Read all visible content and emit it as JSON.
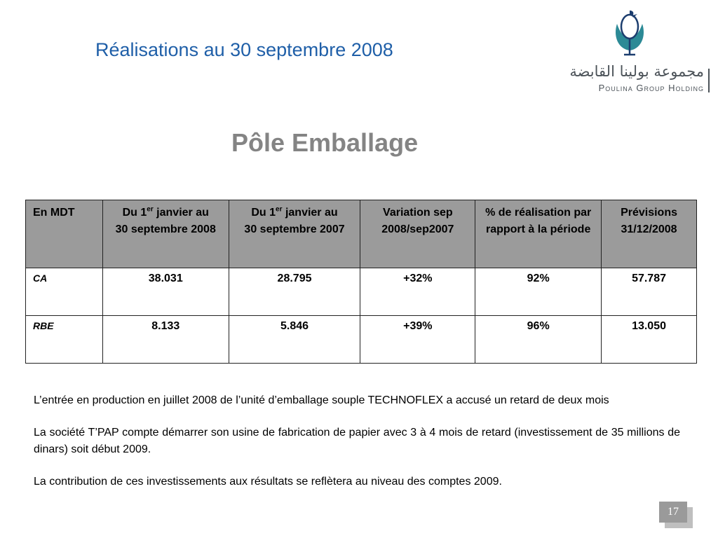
{
  "slide": {
    "title": "Réalisations au 30 septembre 2008",
    "section_title": "Pôle Emballage",
    "page_number": "17"
  },
  "logo": {
    "arabic_text": "مجموعة بولينا القابضة",
    "latin_text": "Poulina Group Holding",
    "icon": "poulina-bird-icon",
    "colors": {
      "teal": "#2c8a96",
      "navy": "#1c3d6e"
    }
  },
  "table": {
    "headers": [
      {
        "line1": "En MDT"
      },
      {
        "prefix": "Du 1",
        "sup": "er",
        "suffix": " janvier au",
        "line2": "30 septembre 2008"
      },
      {
        "prefix": "Du 1",
        "sup": "er",
        "suffix": " janvier au",
        "line2": "30 septembre 2007"
      },
      {
        "line1": "Variation sep 2008/sep2007"
      },
      {
        "line1": "% de réalisation par rapport à la période"
      },
      {
        "line1": "Prévisions 31/12/2008"
      }
    ],
    "rows": [
      {
        "label": "CA",
        "values": [
          "38.031",
          "28.795",
          "+32%",
          "92%",
          "57.787"
        ]
      },
      {
        "label": "RBE",
        "values": [
          "8.133",
          "5.846",
          "+39%",
          "96%",
          "13.050"
        ]
      }
    ]
  },
  "notes": [
    "L’entrée en production en juillet 2008 de l’unité d’emballage souple TECHNOFLEX a accusé un retard de deux mois",
    "La société T’PAP compte démarrer son usine de fabrication de papier avec 3 à 4 mois de retard (investissement de 35 millions de dinars) soit début 2009.",
    "La contribution de ces investissements aux résultats se reflètera au niveau des comptes 2009."
  ],
  "colors": {
    "title": "#1f5fa8",
    "section_title": "#848484",
    "header_bg": "#9b9b9b"
  }
}
